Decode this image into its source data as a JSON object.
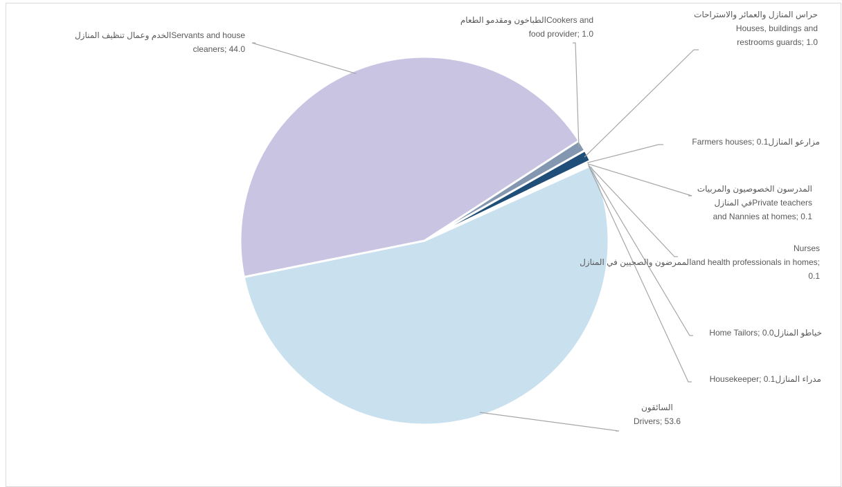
{
  "chart_data": {
    "type": "pie",
    "title": "",
    "slices": [
      {
        "label_lines": [
          "Cookers and",
          "food provider; 1.0"
        ],
        "label_ar": "الطباخون ومقدمو الطعام",
        "value": 1.0,
        "color": "#8497b0"
      },
      {
        "label_lines": [
          "حراس المنازل والعمائر والاستراحات",
          "Houses, buildings and",
          "restrooms guards; 1.0"
        ],
        "value": 1.0,
        "color": "#1f4e79"
      },
      {
        "label_lines": [
          "Farmers houses; 0.1"
        ],
        "label_ar": "مزارعو المنازل",
        "value": 0.1,
        "color": "#2e75b6"
      },
      {
        "label_lines": [
          "المدرسون الخصوصيون والمربيات",
          "Private teachers",
          "and Nannies at homes; 0.1"
        ],
        "label_ar": "في المنازل",
        "value": 0.1,
        "color": "#9dc3e6"
      },
      {
        "label_lines": [
          "Nurses",
          "and health professionals in homes;",
          "0.1"
        ],
        "label_ar": "الممرضون والصحيين في المنازل",
        "value": 0.1,
        "color": "#bdd7ee"
      },
      {
        "label_lines": [
          "Home Tailors; 0.0"
        ],
        "label_ar": "خياطو المنازل",
        "value": 0.0,
        "color": "#deebf7"
      },
      {
        "label_lines": [
          "Housekeeper; 0.1"
        ],
        "label_ar": "مدراء المنازل",
        "value": 0.1,
        "color": "#c5d9ea"
      },
      {
        "label_lines": [
          "السائقون",
          "Drivers; 53.6"
        ],
        "value": 53.6,
        "color": "#c9e0ee"
      },
      {
        "label_lines": [
          "Servants and house",
          "cleaners; 44.0"
        ],
        "label_ar": "الخدم وعمال تنظيف المنازل",
        "value": 44.0,
        "color": "#c9c4e2"
      }
    ]
  }
}
